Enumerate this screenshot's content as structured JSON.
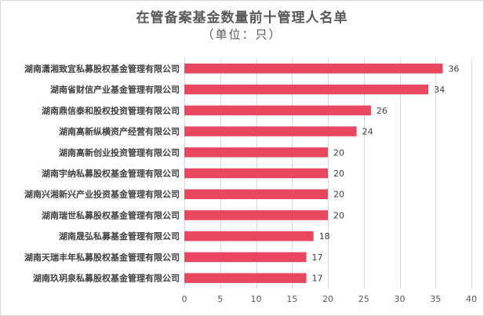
{
  "chart_data": {
    "type": "bar",
    "orientation": "horizontal",
    "title": "在管备案基金数量前十管理人名单",
    "subtitle": "（单位：只）",
    "categories": [
      "湖南潇湘致宜私募股权基金管理有限公司",
      "湖南省财信产业基金管理有限公司",
      "湖南鼎信泰和股权投资管理有限公司",
      "湖南高新纵横资产经营有限公司",
      "湖南高新创业投资管理有限公司",
      "湖南宇纳私募股权基金管理有限公司",
      "湖南兴湘新兴产业投资基金管理有限公司",
      "湖南瑞世私募股权基金管理有限公司",
      "湖南晟弘私募基金管理有限公司",
      "湖南天瑞丰年私募股权基金管理有限公司",
      "湖南玖玥泉私募股权基金管理有限公司"
    ],
    "values": [
      36,
      34,
      26,
      24,
      20,
      20,
      20,
      20,
      18,
      17,
      17
    ],
    "xlim": [
      0,
      40
    ],
    "xticks": [
      0,
      5,
      10,
      15,
      20,
      25,
      30,
      35,
      40
    ],
    "bar_color": "#e8475f",
    "grid": true,
    "legend": "none"
  }
}
